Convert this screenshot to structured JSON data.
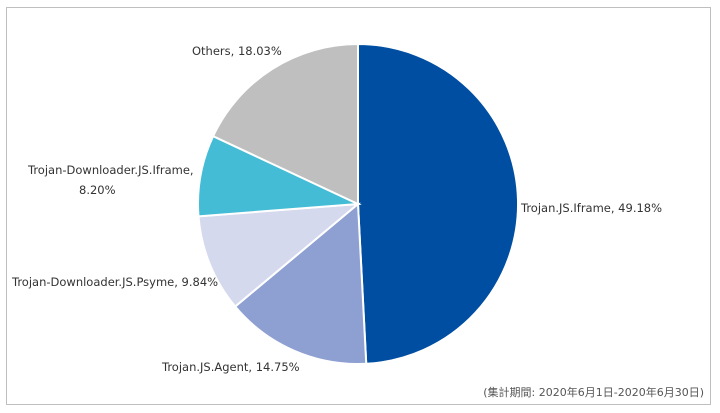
{
  "chart_data": {
    "type": "pie",
    "slices": [
      {
        "name": "Trojan.JS.Iframe",
        "value": 49.18,
        "label": "Trojan.JS.Iframe, 49.18%",
        "color": "#004ea2"
      },
      {
        "name": "Trojan.JS.Agent",
        "value": 14.75,
        "label": "Trojan.JS.Agent, 14.75%",
        "color": "#8e9fd2"
      },
      {
        "name": "Trojan-Downloader.JS.Psyme",
        "value": 9.84,
        "label": "Trojan-Downloader.JS.Psyme, 9.84%",
        "color": "#d5d9ee"
      },
      {
        "name": "Trojan-Downloader.JS.Iframe",
        "value": 8.2,
        "label_lines": [
          "Trojan-Downloader.JS.Iframe,",
          "8.20%"
        ],
        "color": "#45bcd6"
      },
      {
        "name": "Others",
        "value": 18.03,
        "label": "Others, 18.03%",
        "color": "#bfbfbf"
      }
    ],
    "start": "12 o'clock",
    "direction": "clockwise",
    "legend": "none"
  },
  "note": "(集計期間: 2020年6月1日-2020年6月30日)"
}
